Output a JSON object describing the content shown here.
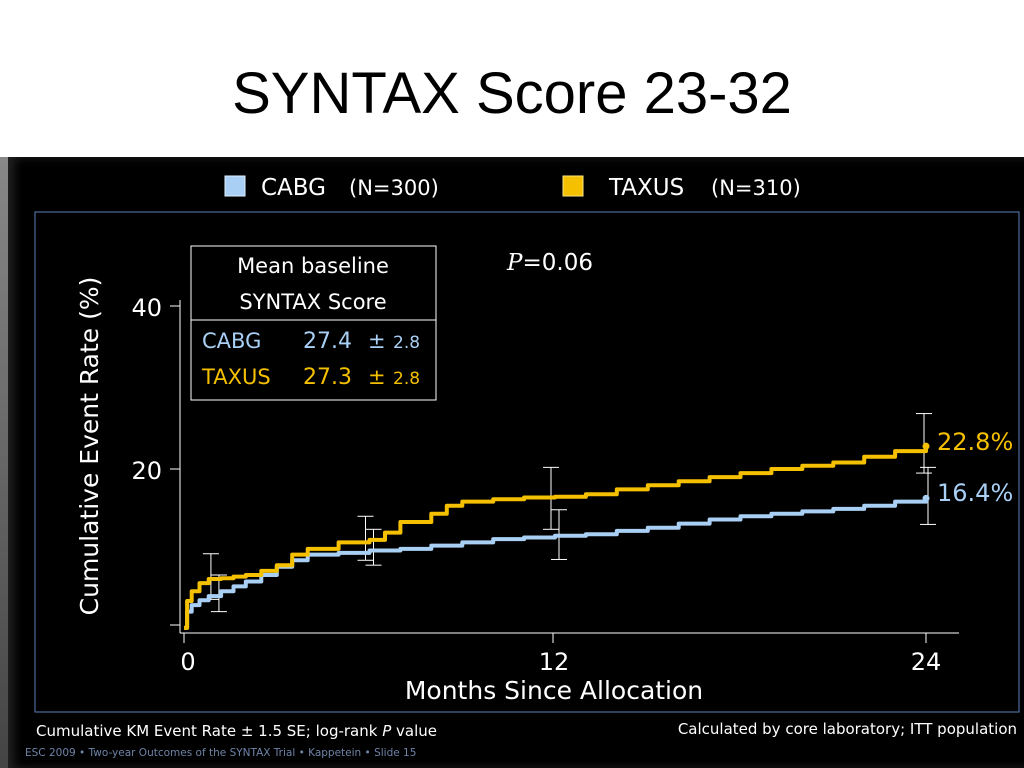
{
  "slide": {
    "title": "SYNTAX Score 23-32"
  },
  "legend": [
    {
      "name": "CABG",
      "n": "(N=300)",
      "color": "#a9cff5"
    },
    {
      "name": "TAXUS",
      "n": "(N=310)",
      "color": "#f5c000"
    }
  ],
  "baseline_box": {
    "header_line1": "Mean baseline",
    "header_line2": "SYNTAX Score",
    "rows": [
      {
        "arm": "CABG",
        "mean": "27.4",
        "pm": "±",
        "sd": "2.8"
      },
      {
        "arm": "TAXUS",
        "mean": "27.3",
        "pm": "±",
        "sd": "2.8"
      }
    ]
  },
  "p_value": {
    "label": "P",
    "value": "=0.06"
  },
  "footnote_left": {
    "text": "Cumulative KM Event Rate ± 1.5 SE; log-rank ",
    "p": "P",
    "tail": " value"
  },
  "footnote_right": "Calculated by core laboratory; ITT population",
  "source_line": "ESC 2009 • Two-year Outcomes of the SYNTAX Trial • Kappetein • Slide 15",
  "chart_data": {
    "type": "line",
    "xlabel": "Months Since Allocation",
    "ylabel": "Cumulative Event Rate (%)",
    "xlim": [
      0,
      24
    ],
    "ylim": [
      0,
      40
    ],
    "xticks": [
      "0",
      "12",
      "24"
    ],
    "yticks": [
      "20",
      "40"
    ],
    "series": [
      {
        "name": "CABG",
        "color": "#a9cff5",
        "end_label": "16.4%",
        "x": [
          0,
          0.1,
          0.25,
          0.5,
          0.8,
          1.2,
          1.6,
          2.0,
          2.5,
          3.0,
          3.5,
          4.0,
          5.0,
          6.0,
          7.0,
          8.0,
          9.0,
          10.0,
          11.0,
          12.0,
          13.0,
          14.0,
          15.0,
          16.0,
          17.0,
          18.0,
          19.0,
          20.0,
          21.0,
          22.0,
          23.0,
          24.0
        ],
        "y": [
          0.5,
          2.5,
          3.3,
          3.9,
          4.4,
          5.0,
          5.6,
          6.2,
          7.0,
          8.0,
          8.8,
          9.5,
          9.7,
          10.0,
          10.2,
          10.6,
          11.0,
          11.4,
          11.6,
          11.8,
          12.0,
          12.4,
          12.8,
          13.3,
          13.8,
          14.2,
          14.5,
          14.8,
          15.1,
          15.5,
          16.0,
          16.4
        ]
      },
      {
        "name": "TAXUS",
        "color": "#f5c000",
        "end_label": "22.8%",
        "x": [
          0,
          0.1,
          0.25,
          0.5,
          0.8,
          1.2,
          1.6,
          2.0,
          2.5,
          3.0,
          3.5,
          4.0,
          5.0,
          6.0,
          6.5,
          7.0,
          8.0,
          8.5,
          9.0,
          10.0,
          11.0,
          12.0,
          13.0,
          14.0,
          15.0,
          16.0,
          17.0,
          18.0,
          19.0,
          20.0,
          21.0,
          22.0,
          23.0,
          24.0
        ],
        "y": [
          0.5,
          3.8,
          5.0,
          6.0,
          6.5,
          6.6,
          6.8,
          7.0,
          7.5,
          8.2,
          9.5,
          10.2,
          11.0,
          11.3,
          12.2,
          13.5,
          14.5,
          15.5,
          16.0,
          16.3,
          16.5,
          16.6,
          16.9,
          17.5,
          18.0,
          18.5,
          19.0,
          19.5,
          20.0,
          20.4,
          20.8,
          21.5,
          22.2,
          22.8
        ]
      }
    ],
    "error_bars": [
      {
        "series": "CABG",
        "x": [
          1,
          6,
          12,
          24
        ],
        "lo": [
          2.5,
          8.2,
          8.9,
          13.2
        ],
        "hi": [
          7.0,
          12.6,
          15.0,
          20.2
        ]
      },
      {
        "series": "TAXUS",
        "x": [
          1,
          6,
          12,
          24
        ],
        "lo": [
          4.0,
          8.8,
          12.6,
          19.5
        ],
        "hi": [
          9.6,
          14.2,
          20.2,
          26.8
        ]
      }
    ]
  }
}
